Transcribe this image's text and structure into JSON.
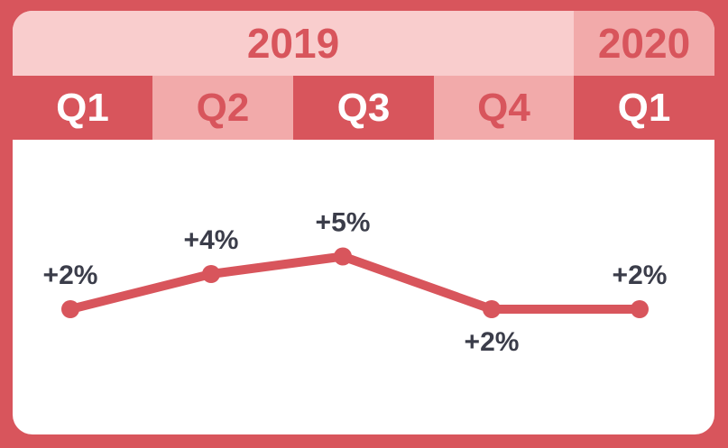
{
  "header": {
    "years": [
      "2019",
      "2020"
    ],
    "quarters": [
      "Q1",
      "Q2",
      "Q3",
      "Q4",
      "Q1"
    ]
  },
  "colors": {
    "accent": "#d8555c",
    "light": "#f9cdcd",
    "mid": "#f2aaaa",
    "text": "#3b3d4a"
  },
  "chart_data": {
    "type": "line",
    "categories": [
      "2019 Q1",
      "2019 Q2",
      "2019 Q3",
      "2019 Q4",
      "2020 Q1"
    ],
    "values": [
      2,
      4,
      5,
      2,
      2
    ],
    "labels": [
      "+2%",
      "+4%",
      "+5%",
      "+2%",
      "+2%"
    ],
    "ylim": [
      0,
      6
    ],
    "grid": false
  }
}
